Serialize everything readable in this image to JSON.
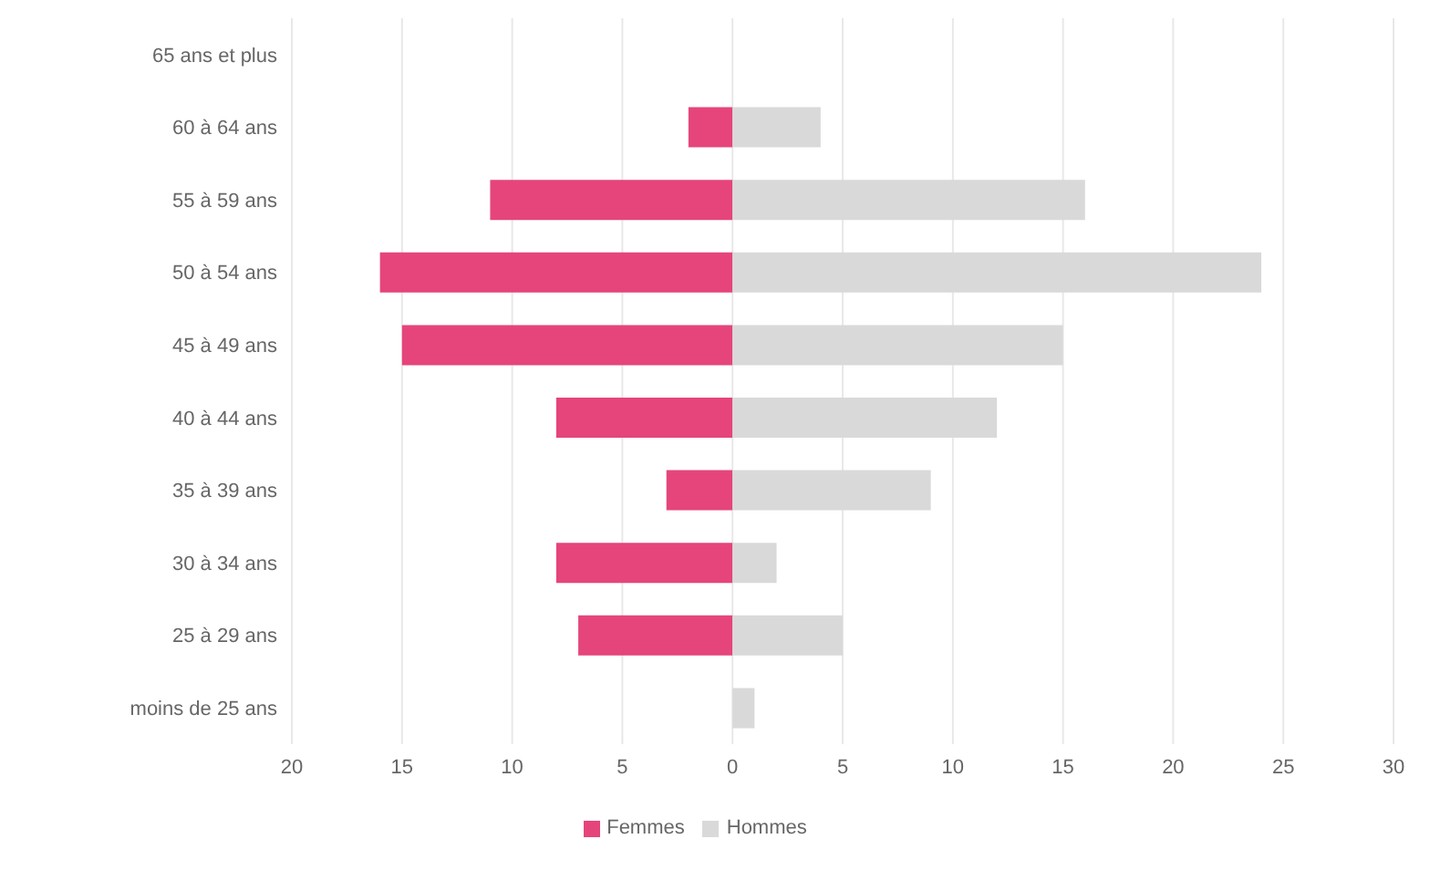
{
  "chart_data": {
    "type": "bar",
    "orientation": "horizontal",
    "stacked": true,
    "categories": [
      "65 ans et plus",
      "60 à 64 ans",
      "55 à 59 ans",
      "50 à 54 ans",
      "45 à 49 ans",
      "40 à 44 ans",
      "35 à 39 ans",
      "30 à 34 ans",
      "25 à 29 ans",
      "moins de 25 ans"
    ],
    "series": [
      {
        "name": "Femmes",
        "color": "#e5457a",
        "values": [
          0,
          -2,
          -11,
          -16,
          -15,
          -8,
          -3,
          -8,
          -7,
          0
        ]
      },
      {
        "name": "Hommes",
        "color": "#d9d9d9",
        "values": [
          0,
          4,
          16,
          24,
          15,
          12,
          9,
          2,
          5,
          1
        ]
      }
    ],
    "xlim": [
      -20,
      30
    ],
    "xticks": [
      {
        "value": -20,
        "label": "20"
      },
      {
        "value": -15,
        "label": "15"
      },
      {
        "value": -10,
        "label": "10"
      },
      {
        "value": -5,
        "label": "5"
      },
      0,
      5,
      10,
      15,
      20,
      25,
      30
    ],
    "grid": "x",
    "legend": "bottom"
  }
}
